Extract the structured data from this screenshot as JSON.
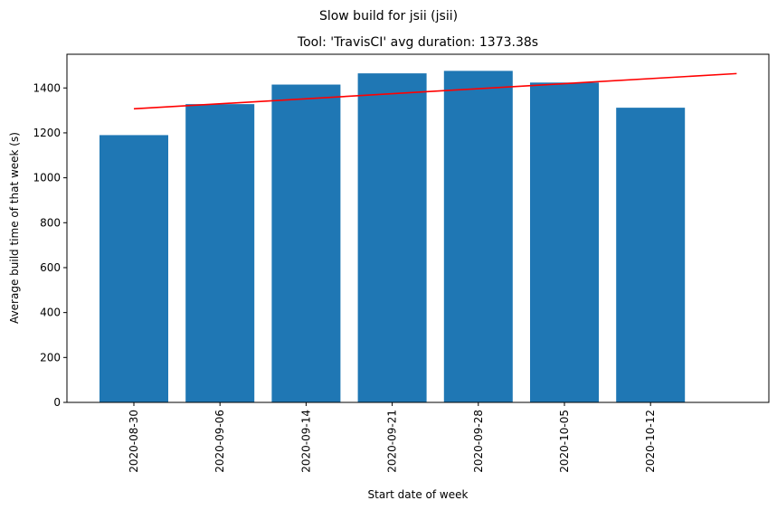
{
  "chart_data": {
    "type": "bar",
    "suptitle": "Slow build for jsii (jsii)",
    "title": "Tool: 'TravisCI' avg duration: 1373.38s",
    "xlabel": "Start date of week",
    "ylabel": "Average build time of that week (s)",
    "categories": [
      "2020-08-30",
      "2020-09-06",
      "2020-09-14",
      "2020-09-21",
      "2020-09-28",
      "2020-10-05",
      "2020-10-12"
    ],
    "values": [
      1190,
      1328,
      1415,
      1465,
      1476,
      1424,
      1312
    ],
    "bar_color": "#1f77b4",
    "trend_line": {
      "color": "#ff0000",
      "start_y": 1307,
      "end_y": 1464
    },
    "ylim": [
      0,
      1550
    ],
    "yticks": [
      0,
      200,
      400,
      600,
      800,
      1000,
      1200,
      1400
    ],
    "grid": false,
    "legend": "none"
  }
}
